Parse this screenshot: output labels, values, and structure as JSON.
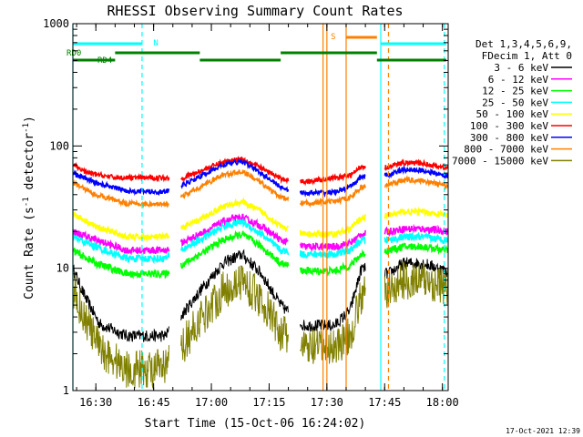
{
  "chart_data": {
    "type": "line",
    "title": "RHESSI Observing Summary Count Rates",
    "xlabel": "Start Time (15-Oct-06 16:24:02)",
    "ylabel": "Count Rate (s^-1 detector^-1)",
    "ylabel_main": "Count Rate (s",
    "ylabel_exp1": "-1",
    "ylabel_mid": " detector",
    "ylabel_exp2": "-1",
    "ylabel_end": ")",
    "y_scale": "log",
    "ylim": [
      1,
      1000
    ],
    "xlim": [
      "16:24:02",
      "18:01:30"
    ],
    "x_ticks": [
      "16:30",
      "16:45",
      "17:00",
      "17:15",
      "17:30",
      "17:45",
      "18:00"
    ],
    "y_ticks": [
      "1",
      "10",
      "100",
      "1000"
    ],
    "timestamp": "17-Oct-2021 12:39",
    "legend": {
      "placement": "right",
      "header": [
        "Det 1,3,4,5,6,9,",
        "FDecim 1, Att 0"
      ]
    },
    "data_gaps": [
      [
        "16:49",
        "16:52"
      ],
      [
        "17:20",
        "17:23"
      ],
      [
        "17:40",
        "17:45"
      ]
    ],
    "flag_labels": {
      "n": "N",
      "s": "S",
      "rd0": "RD0",
      "rd4": "RD4"
    },
    "flags": {
      "night": {
        "name": "N",
        "color": "#00ffff",
        "intervals": [
          [
            "16:24",
            "16:42"
          ],
          [
            "17:44",
            "18:01"
          ]
        ]
      },
      "saa": {
        "name": "S",
        "color": "#ff8000",
        "intervals": [
          [
            "17:35",
            "17:43"
          ]
        ]
      },
      "rd0": {
        "name": "RD0",
        "color": "#008000",
        "intervals": [
          [
            "16:35",
            "16:57"
          ],
          [
            "17:18",
            "17:43"
          ]
        ]
      },
      "rd4": {
        "name": "RD4",
        "color": "#008000",
        "intervals": [
          [
            "16:24",
            "16:35"
          ],
          [
            "16:57",
            "17:18"
          ],
          [
            "17:43",
            "18:01"
          ]
        ]
      }
    },
    "vlines": [
      {
        "time": "16:24:02",
        "color": "#00ffff",
        "style": "solid"
      },
      {
        "time": "16:42:00",
        "color": "#00ffff",
        "style": "dashed"
      },
      {
        "time": "17:29:00",
        "color": "#ff8000",
        "style": "solid"
      },
      {
        "time": "17:30:00",
        "color": "#ff8000",
        "style": "solid"
      },
      {
        "time": "17:35:00",
        "color": "#ff8000",
        "style": "solid"
      },
      {
        "time": "17:44:00",
        "color": "#00ffff",
        "style": "solid"
      },
      {
        "time": "17:46:00",
        "color": "#ff8000",
        "style": "dashed"
      },
      {
        "time": "18:00:30",
        "color": "#00ffff",
        "style": "dashed"
      }
    ],
    "series": [
      {
        "name": "3 - 6 keV",
        "color": "#000000",
        "noise": 0.05,
        "points": [
          [
            "16:24",
            10
          ],
          [
            "16:27",
            6
          ],
          [
            "16:31",
            3.5
          ],
          [
            "16:38",
            2.8
          ],
          [
            "16:48",
            2.8
          ],
          [
            "16:52",
            4
          ],
          [
            "16:57",
            6.5
          ],
          [
            "17:03",
            11
          ],
          [
            "17:08",
            13
          ],
          [
            "17:13",
            9
          ],
          [
            "17:18",
            5
          ],
          [
            "17:24",
            3.4
          ],
          [
            "17:32",
            3.4
          ],
          [
            "17:36",
            4.5
          ],
          [
            "17:39",
            10
          ],
          [
            "17:46",
            9
          ],
          [
            "17:50",
            11
          ],
          [
            "17:55",
            11
          ],
          [
            "18:01",
            9.5
          ]
        ]
      },
      {
        "name": "6 - 12 keV",
        "color": "#ff00ff",
        "noise": 0.03,
        "points": [
          [
            "16:24",
            20
          ],
          [
            "16:30",
            17
          ],
          [
            "16:38",
            14
          ],
          [
            "16:48",
            14
          ],
          [
            "16:52",
            16
          ],
          [
            "16:57",
            19
          ],
          [
            "17:03",
            24
          ],
          [
            "17:08",
            26
          ],
          [
            "17:13",
            22
          ],
          [
            "17:18",
            17
          ],
          [
            "17:24",
            15
          ],
          [
            "17:32",
            15
          ],
          [
            "17:36",
            16
          ],
          [
            "17:39",
            19
          ],
          [
            "17:46",
            20
          ],
          [
            "17:50",
            21
          ],
          [
            "17:55",
            21
          ],
          [
            "18:01",
            20
          ]
        ]
      },
      {
        "name": "12 - 25 keV",
        "color": "#00ff00",
        "noise": 0.03,
        "points": [
          [
            "16:24",
            14
          ],
          [
            "16:30",
            11
          ],
          [
            "16:38",
            9
          ],
          [
            "16:48",
            9
          ],
          [
            "16:52",
            10.5
          ],
          [
            "16:57",
            13
          ],
          [
            "17:03",
            17
          ],
          [
            "17:08",
            19
          ],
          [
            "17:13",
            15
          ],
          [
            "17:18",
            11
          ],
          [
            "17:24",
            9.5
          ],
          [
            "17:32",
            9.5
          ],
          [
            "17:36",
            10.5
          ],
          [
            "17:39",
            13
          ],
          [
            "17:46",
            14
          ],
          [
            "17:50",
            15
          ],
          [
            "17:55",
            15
          ],
          [
            "18:01",
            14
          ]
        ]
      },
      {
        "name": "25 - 50 keV",
        "color": "#00ffff",
        "noise": 0.03,
        "points": [
          [
            "16:24",
            18
          ],
          [
            "16:30",
            15
          ],
          [
            "16:38",
            12
          ],
          [
            "16:48",
            12
          ],
          [
            "16:52",
            14
          ],
          [
            "16:57",
            17
          ],
          [
            "17:03",
            22
          ],
          [
            "17:08",
            24
          ],
          [
            "17:13",
            19
          ],
          [
            "17:18",
            14
          ],
          [
            "17:24",
            13
          ],
          [
            "17:32",
            13
          ],
          [
            "17:36",
            14
          ],
          [
            "17:39",
            17
          ],
          [
            "17:46",
            17
          ],
          [
            "17:50",
            18
          ],
          [
            "17:55",
            18
          ],
          [
            "18:01",
            17
          ]
        ]
      },
      {
        "name": "50 - 100 keV",
        "color": "#ffff00",
        "noise": 0.025,
        "points": [
          [
            "16:24",
            28
          ],
          [
            "16:30",
            22
          ],
          [
            "16:38",
            18
          ],
          [
            "16:48",
            18
          ],
          [
            "16:52",
            21
          ],
          [
            "16:57",
            25
          ],
          [
            "17:03",
            32
          ],
          [
            "17:08",
            35
          ],
          [
            "17:13",
            29
          ],
          [
            "17:18",
            22
          ],
          [
            "17:24",
            19
          ],
          [
            "17:32",
            19
          ],
          [
            "17:36",
            21
          ],
          [
            "17:39",
            26
          ],
          [
            "17:46",
            27
          ],
          [
            "17:50",
            29
          ],
          [
            "17:55",
            29
          ],
          [
            "18:01",
            27
          ]
        ]
      },
      {
        "name": "100 - 300 keV",
        "color": "#ff0000",
        "noise": 0.02,
        "points": [
          [
            "16:24",
            70
          ],
          [
            "16:28",
            60
          ],
          [
            "16:35",
            55
          ],
          [
            "16:48",
            55
          ],
          [
            "16:52",
            54
          ],
          [
            "16:57",
            62
          ],
          [
            "17:03",
            74
          ],
          [
            "17:08",
            79
          ],
          [
            "17:13",
            66
          ],
          [
            "17:18",
            54
          ],
          [
            "17:24",
            51
          ],
          [
            "17:32",
            55
          ],
          [
            "17:36",
            57
          ],
          [
            "17:39",
            68
          ],
          [
            "17:46",
            67
          ],
          [
            "17:50",
            73
          ],
          [
            "17:55",
            72
          ],
          [
            "18:01",
            66
          ]
        ]
      },
      {
        "name": "300 - 800 keV",
        "color": "#0000ff",
        "noise": 0.02,
        "points": [
          [
            "16:24",
            60
          ],
          [
            "16:30",
            50
          ],
          [
            "16:38",
            43
          ],
          [
            "16:48",
            42
          ],
          [
            "16:52",
            47
          ],
          [
            "16:57",
            56
          ],
          [
            "17:03",
            70
          ],
          [
            "17:08",
            75
          ],
          [
            "17:13",
            60
          ],
          [
            "17:18",
            46
          ],
          [
            "17:24",
            41
          ],
          [
            "17:32",
            42
          ],
          [
            "17:36",
            46
          ],
          [
            "17:39",
            56
          ],
          [
            "17:46",
            58
          ],
          [
            "17:50",
            64
          ],
          [
            "17:55",
            63
          ],
          [
            "18:01",
            57
          ]
        ]
      },
      {
        "name": "800 - 7000 keV",
        "color": "#ff8000",
        "noise": 0.02,
        "points": [
          [
            "16:24",
            50
          ],
          [
            "16:30",
            40
          ],
          [
            "16:38",
            34
          ],
          [
            "16:48",
            33
          ],
          [
            "16:52",
            38
          ],
          [
            "16:57",
            46
          ],
          [
            "17:03",
            58
          ],
          [
            "17:08",
            62
          ],
          [
            "17:13",
            50
          ],
          [
            "17:18",
            38
          ],
          [
            "17:24",
            34
          ],
          [
            "17:32",
            35
          ],
          [
            "17:36",
            38
          ],
          [
            "17:39",
            46
          ],
          [
            "17:46",
            48
          ],
          [
            "17:50",
            53
          ],
          [
            "17:55",
            52
          ],
          [
            "18:01",
            47
          ]
        ]
      },
      {
        "name": "7000 - 15000 keV",
        "color": "#808000",
        "noise": 0.16,
        "points": [
          [
            "16:24",
            7
          ],
          [
            "16:27",
            4
          ],
          [
            "16:31",
            2.2
          ],
          [
            "16:38",
            1.5
          ],
          [
            "16:48",
            1.5
          ],
          [
            "16:52",
            2.2
          ],
          [
            "16:57",
            3.8
          ],
          [
            "17:03",
            6.5
          ],
          [
            "17:08",
            8
          ],
          [
            "17:13",
            5.5
          ],
          [
            "17:18",
            3
          ],
          [
            "17:24",
            2.2
          ],
          [
            "17:32",
            2.3
          ],
          [
            "17:36",
            2.8
          ],
          [
            "17:39",
            6
          ],
          [
            "17:46",
            6.5
          ],
          [
            "17:50",
            8
          ],
          [
            "17:55",
            8
          ],
          [
            "18:01",
            7
          ]
        ]
      }
    ]
  }
}
